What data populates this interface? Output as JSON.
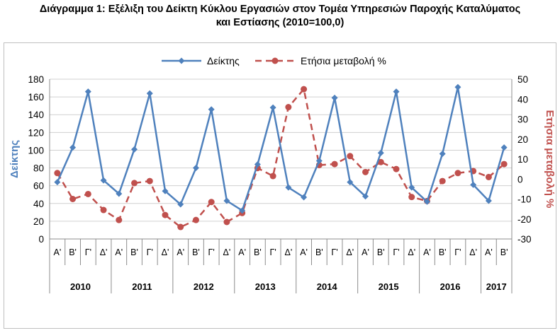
{
  "title_line1": "Διάγραμμα 1: Εξέλιξη του Δείκτη Κύκλου Εργασιών στον Τομέα Υπηρεσιών Παροχής Καταλύματος",
  "title_line2": "και Εστίασης  (2010=100,0)",
  "chart_data": {
    "type": "line",
    "title": "Διάγραμμα 1: Εξέλιξη του Δείκτη Κύκλου Εργασιών στον Τομέα Υπηρεσιών Παροχής Καταλύματος και Εστίασης  (2010=100,0)",
    "ylabel": "Δείκτης",
    "y2label": "Ετήσια μεταβολή %",
    "ylim": [
      0,
      180
    ],
    "y2lim": [
      -30,
      50
    ],
    "yticks": [
      "0",
      "20",
      "40",
      "60",
      "80",
      "100",
      "120",
      "140",
      "160",
      "180"
    ],
    "y2ticks": [
      "-30",
      "-20",
      "-10",
      "0",
      "10",
      "20",
      "30",
      "40",
      "50"
    ],
    "grid": true,
    "legend_position": "top",
    "quarters": [
      "Α'",
      "Β'",
      "Γ'",
      "Δ'",
      "Α'",
      "Β'",
      "Γ'",
      "Δ'",
      "Α'",
      "Β'",
      "Γ'",
      "Δ'",
      "Α'",
      "Β'",
      "Γ'",
      "Δ'",
      "Α'",
      "Β'",
      "Γ'",
      "Δ'",
      "Α'",
      "Β'",
      "Γ'",
      "Δ'",
      "Α'",
      "Β'",
      "Γ'",
      "Δ'",
      "Α'",
      "Β'"
    ],
    "years": [
      {
        "label": "2010",
        "count": 4
      },
      {
        "label": "2011",
        "count": 4
      },
      {
        "label": "2012",
        "count": 4
      },
      {
        "label": "2013",
        "count": 4
      },
      {
        "label": "2014",
        "count": 4
      },
      {
        "label": "2015",
        "count": 4
      },
      {
        "label": "2016",
        "count": 4
      },
      {
        "label": "2017",
        "count": 2
      }
    ],
    "series": [
      {
        "name": "Δείκτης",
        "axis": "left",
        "color": "#4f81bd",
        "style": "solid",
        "marker": "diamond",
        "values": [
          64,
          103,
          166,
          66,
          51,
          101,
          164,
          54,
          39,
          80,
          146,
          43,
          32,
          84,
          148,
          58,
          47,
          88,
          159,
          64,
          48,
          97,
          166,
          58,
          42,
          96,
          171,
          61,
          43,
          103
        ]
      },
      {
        "name": "Ετήσια μεταβολή %",
        "axis": "right",
        "color": "#c0504d",
        "style": "dashed",
        "marker": "circle",
        "values": [
          3,
          -10,
          -7.5,
          -15.5,
          -20.5,
          -2,
          -1,
          -18,
          -24,
          -20.5,
          -11.5,
          -21.5,
          -17,
          5.5,
          1.5,
          36,
          45,
          7,
          7.5,
          11.5,
          3.5,
          8.5,
          5,
          -9,
          -11,
          -1,
          3,
          4,
          1,
          7.5
        ]
      }
    ]
  }
}
